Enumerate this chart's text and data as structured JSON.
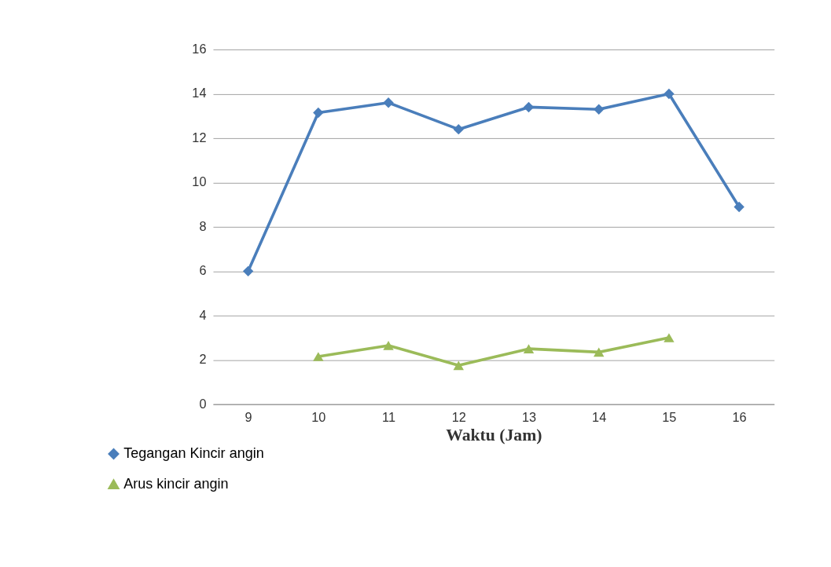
{
  "chart_data": {
    "type": "line",
    "xlabel": "Waktu (Jam)",
    "categories": [
      "9",
      "10",
      "11",
      "12",
      "13",
      "14",
      "15",
      "16"
    ],
    "series": [
      {
        "name": "Tegangan Kincir angin",
        "color": "#4a7ebb",
        "marker": "diamond",
        "values": [
          6.0,
          13.15,
          13.6,
          12.4,
          13.4,
          13.3,
          14.0,
          8.9
        ]
      },
      {
        "name": "Arus kincir angin",
        "color": "#9bbb59",
        "marker": "triangle",
        "values": [
          null,
          2.15,
          2.65,
          1.75,
          2.5,
          2.35,
          3.0,
          null
        ]
      }
    ],
    "ylim": [
      0,
      16
    ],
    "yticks": [
      0,
      2,
      4,
      6,
      8,
      10,
      12,
      14,
      16
    ],
    "grid": "y",
    "legend": "bottom left",
    "line_style": "solid"
  }
}
